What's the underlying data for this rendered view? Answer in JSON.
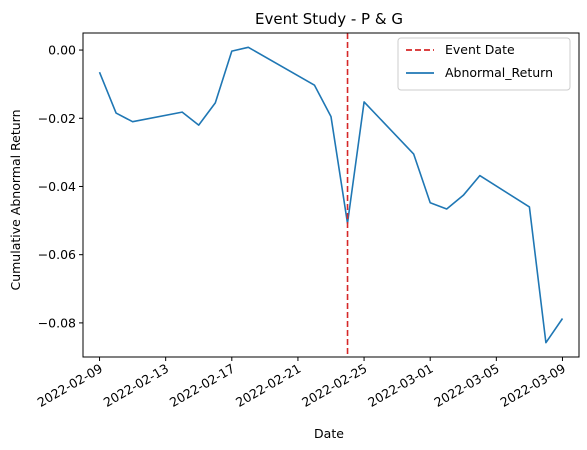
{
  "chart_data": {
    "type": "line",
    "title": "Event Study - P & G",
    "xlabel": "Date",
    "ylabel": "Cumulative Abnormal Return",
    "xlim": [
      "2022-02-08",
      "2022-03-10"
    ],
    "ylim": [
      -0.09,
      0.005
    ],
    "x_ticks": [
      "2022-02-09",
      "2022-02-13",
      "2022-02-17",
      "2022-02-21",
      "2022-02-25",
      "2022-03-01",
      "2022-03-05",
      "2022-03-09"
    ],
    "y_ticks": [
      0.0,
      -0.02,
      -0.04,
      -0.06,
      -0.08
    ],
    "y_tick_labels": [
      "0.00",
      "−0.02",
      "−0.04",
      "−0.06",
      "−0.08"
    ],
    "grid": false,
    "legend_position": "top-right",
    "event_line": {
      "name": "Event Date",
      "x": "2022-02-24",
      "color": "#d62728",
      "style": "dashed"
    },
    "series": [
      {
        "name": "Abnormal_Return",
        "color": "#1f77b4",
        "x": [
          "2022-02-09",
          "2022-02-10",
          "2022-02-11",
          "2022-02-14",
          "2022-02-15",
          "2022-02-16",
          "2022-02-17",
          "2022-02-18",
          "2022-02-22",
          "2022-02-23",
          "2022-02-24",
          "2022-02-25",
          "2022-02-28",
          "2022-03-01",
          "2022-03-02",
          "2022-03-03",
          "2022-03-04",
          "2022-03-07",
          "2022-03-08",
          "2022-03-09"
        ],
        "values": [
          -0.0065,
          -0.0185,
          -0.021,
          -0.0182,
          -0.022,
          -0.0155,
          -0.0003,
          0.0008,
          -0.0103,
          -0.0195,
          -0.0508,
          -0.0152,
          -0.0305,
          -0.0448,
          -0.0466,
          -0.0426,
          -0.0368,
          -0.046,
          -0.0858,
          -0.0787
        ]
      }
    ]
  }
}
